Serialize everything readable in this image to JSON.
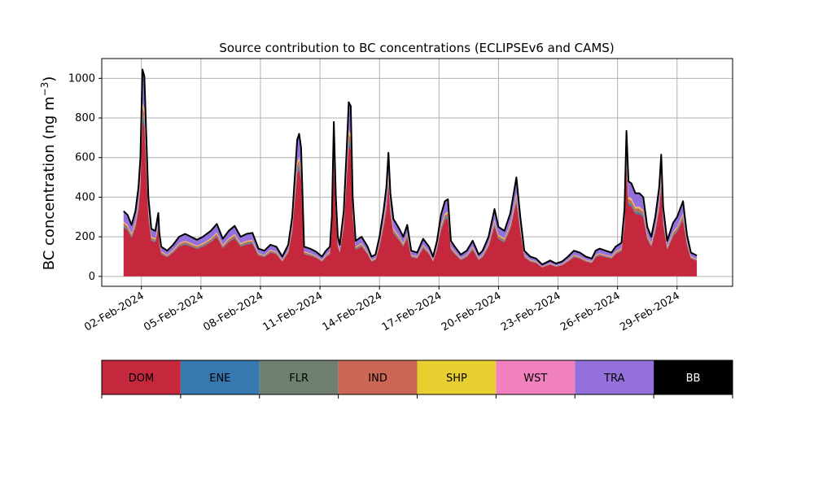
{
  "chart_data": {
    "type": "area",
    "title": "Source contribution to BC concentrations (ECLIPSEv6 and CAMS)",
    "ylabel": "BC concentration (ng m",
    "ylabel_superscript": "−3",
    "ylabel_suffix": ")",
    "ylim": [
      -50,
      1100
    ],
    "yticks": [
      0,
      200,
      400,
      600,
      800,
      1000
    ],
    "xlim": [
      0.0,
      31.8
    ],
    "xticks": [
      {
        "day": 2,
        "label": "02-Feb-2024"
      },
      {
        "day": 5,
        "label": "05-Feb-2024"
      },
      {
        "day": 8,
        "label": "08-Feb-2024"
      },
      {
        "day": 11,
        "label": "11-Feb-2024"
      },
      {
        "day": 14,
        "label": "14-Feb-2024"
      },
      {
        "day": 17,
        "label": "17-Feb-2024"
      },
      {
        "day": 20,
        "label": "20-Feb-2024"
      },
      {
        "day": 23,
        "label": "23-Feb-2024"
      },
      {
        "day": 26,
        "label": "26-Feb-2024"
      },
      {
        "day": 29,
        "label": "29-Feb-2024"
      }
    ],
    "grid": true,
    "total_knots": [
      [
        1.1,
        330
      ],
      [
        1.3,
        310
      ],
      [
        1.5,
        260
      ],
      [
        1.7,
        330
      ],
      [
        1.85,
        450
      ],
      [
        1.95,
        600
      ],
      [
        2.05,
        1045
      ],
      [
        2.15,
        1010
      ],
      [
        2.25,
        700
      ],
      [
        2.35,
        400
      ],
      [
        2.5,
        240
      ],
      [
        2.7,
        230
      ],
      [
        2.85,
        320
      ],
      [
        2.9,
        220
      ],
      [
        3.0,
        150
      ],
      [
        3.3,
        130
      ],
      [
        3.6,
        160
      ],
      [
        3.9,
        200
      ],
      [
        4.2,
        215
      ],
      [
        4.5,
        200
      ],
      [
        4.8,
        185
      ],
      [
        5.1,
        200
      ],
      [
        5.5,
        230
      ],
      [
        5.8,
        265
      ],
      [
        6.1,
        190
      ],
      [
        6.4,
        230
      ],
      [
        6.7,
        255
      ],
      [
        7.0,
        200
      ],
      [
        7.3,
        215
      ],
      [
        7.6,
        220
      ],
      [
        7.9,
        140
      ],
      [
        8.2,
        130
      ],
      [
        8.5,
        160
      ],
      [
        8.8,
        150
      ],
      [
        9.1,
        100
      ],
      [
        9.4,
        160
      ],
      [
        9.6,
        300
      ],
      [
        9.75,
        530
      ],
      [
        9.85,
        690
      ],
      [
        9.95,
        720
      ],
      [
        10.05,
        650
      ],
      [
        10.2,
        150
      ],
      [
        10.5,
        140
      ],
      [
        10.8,
        125
      ],
      [
        11.1,
        100
      ],
      [
        11.3,
        130
      ],
      [
        11.5,
        150
      ],
      [
        11.6,
        300
      ],
      [
        11.7,
        780
      ],
      [
        11.8,
        400
      ],
      [
        11.9,
        200
      ],
      [
        12.0,
        160
      ],
      [
        12.2,
        330
      ],
      [
        12.35,
        650
      ],
      [
        12.45,
        880
      ],
      [
        12.55,
        860
      ],
      [
        12.65,
        400
      ],
      [
        12.8,
        180
      ],
      [
        13.1,
        200
      ],
      [
        13.4,
        150
      ],
      [
        13.6,
        100
      ],
      [
        13.8,
        110
      ],
      [
        14.0,
        200
      ],
      [
        14.2,
        330
      ],
      [
        14.35,
        450
      ],
      [
        14.45,
        625
      ],
      [
        14.55,
        420
      ],
      [
        14.7,
        290
      ],
      [
        15.0,
        240
      ],
      [
        15.2,
        200
      ],
      [
        15.4,
        260
      ],
      [
        15.6,
        130
      ],
      [
        15.9,
        120
      ],
      [
        16.2,
        190
      ],
      [
        16.5,
        150
      ],
      [
        16.7,
        100
      ],
      [
        16.9,
        180
      ],
      [
        17.1,
        310
      ],
      [
        17.3,
        380
      ],
      [
        17.45,
        390
      ],
      [
        17.6,
        180
      ],
      [
        17.8,
        150
      ],
      [
        18.1,
        110
      ],
      [
        18.4,
        130
      ],
      [
        18.7,
        180
      ],
      [
        19.0,
        110
      ],
      [
        19.2,
        130
      ],
      [
        19.5,
        200
      ],
      [
        19.8,
        340
      ],
      [
        20.0,
        250
      ],
      [
        20.3,
        230
      ],
      [
        20.6,
        320
      ],
      [
        20.9,
        500
      ],
      [
        21.1,
        300
      ],
      [
        21.3,
        130
      ],
      [
        21.6,
        100
      ],
      [
        21.9,
        90
      ],
      [
        22.2,
        60
      ],
      [
        22.4,
        70
      ],
      [
        22.6,
        80
      ],
      [
        22.9,
        65
      ],
      [
        23.2,
        75
      ],
      [
        23.5,
        100
      ],
      [
        23.8,
        130
      ],
      [
        24.1,
        120
      ],
      [
        24.4,
        100
      ],
      [
        24.7,
        90
      ],
      [
        24.9,
        130
      ],
      [
        25.1,
        140
      ],
      [
        25.4,
        130
      ],
      [
        25.7,
        120
      ],
      [
        25.9,
        150
      ],
      [
        26.2,
        170
      ],
      [
        26.35,
        340
      ],
      [
        26.45,
        735
      ],
      [
        26.55,
        480
      ],
      [
        26.7,
        470
      ],
      [
        26.9,
        420
      ],
      [
        27.1,
        420
      ],
      [
        27.3,
        400
      ],
      [
        27.5,
        250
      ],
      [
        27.7,
        200
      ],
      [
        27.9,
        300
      ],
      [
        28.1,
        450
      ],
      [
        28.2,
        615
      ],
      [
        28.3,
        350
      ],
      [
        28.5,
        180
      ],
      [
        28.8,
        270
      ],
      [
        29.0,
        300
      ],
      [
        29.3,
        380
      ],
      [
        29.5,
        210
      ],
      [
        29.7,
        120
      ],
      [
        29.9,
        110
      ],
      [
        30.0,
        105
      ]
    ],
    "fractions": {
      "DOM": 0.75,
      "ENE": 0.015,
      "FLR": 0.02,
      "IND": 0.03,
      "SHP": 0.015,
      "WST": 0.01,
      "TRA": 0.16,
      "BB": 0.0
    },
    "series": [
      {
        "name": "DOM",
        "color": "#c5283c"
      },
      {
        "name": "ENE",
        "color": "#3878b0"
      },
      {
        "name": "FLR",
        "color": "#6f8070"
      },
      {
        "name": "IND",
        "color": "#cc6656"
      },
      {
        "name": "SHP",
        "color": "#e8cf30"
      },
      {
        "name": "WST",
        "color": "#f180bf"
      },
      {
        "name": "TRA",
        "color": "#9370db"
      },
      {
        "name": "BB",
        "color": "#000000"
      }
    ],
    "total_line_color": "#000000"
  }
}
